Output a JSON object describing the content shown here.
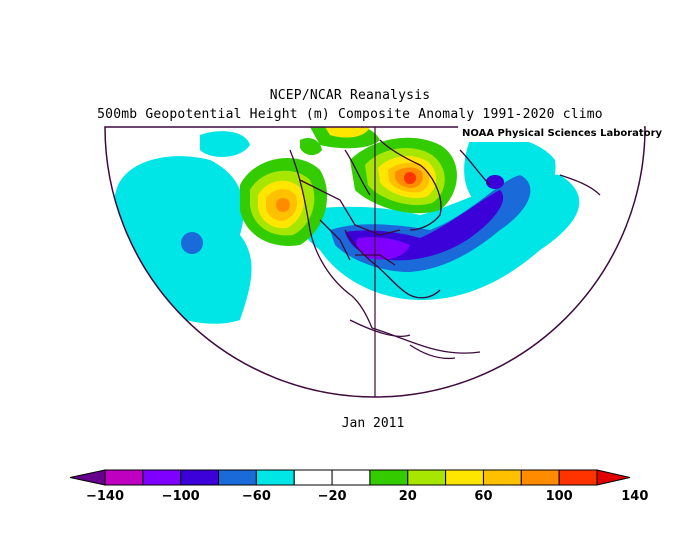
{
  "header": {
    "title": "NCEP/NCAR Reanalysis",
    "subtitle": "500mb Geopotential Height (m) Composite Anomaly 1991-2020 climo"
  },
  "credit": "NOAA Physical Sciences Laboratory",
  "period": "Jan 2011",
  "colorbar": {
    "colors": [
      "#66008c",
      "#c000c0",
      "#8000ff",
      "#3c00d8",
      "#1a6ad9",
      "#00e6e6",
      "#ffffff",
      "#ffffff",
      "#33cc00",
      "#a6e600",
      "#ffe600",
      "#ffc000",
      "#ff8c00",
      "#ff3300",
      "#e00000"
    ],
    "tick_labels": [
      "-140",
      "-100",
      "-60",
      "-20",
      "20",
      "60",
      "100",
      "140"
    ]
  },
  "map_colors": {
    "land_outline": "#3d0a3d",
    "frame": "#3d0a3d"
  }
}
